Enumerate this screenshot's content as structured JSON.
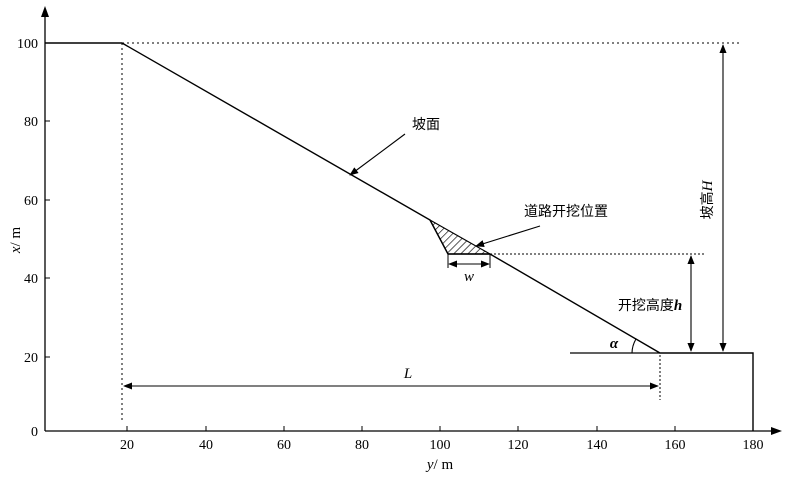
{
  "axes": {
    "x_axis_title": "y",
    "x_axis_unit": "/ m",
    "y_axis_title": "x",
    "y_axis_unit": "/ m",
    "x_ticks": [
      "20",
      "40",
      "60",
      "80",
      "100",
      "120",
      "140",
      "160",
      "180"
    ],
    "y_ticks": [
      "0",
      "20",
      "40",
      "60",
      "80",
      "100"
    ]
  },
  "labels": {
    "slope_face": "坡面",
    "excavation_location": "道路开挖位置",
    "excavation_width": "w",
    "excavation_height_text": "开挖高度",
    "excavation_height_symbol": "h",
    "slope_height_text": "坡高",
    "slope_height_symbol": "H",
    "horizontal_length": "L",
    "slope_angle": "α"
  },
  "geometry_data": {
    "slope_top": {
      "y": 18,
      "x": 100
    },
    "slope_toe": {
      "y": 157,
      "x": 20
    },
    "excavation_top": {
      "y": 96,
      "x": 55
    },
    "excavation_bottom_left": {
      "y": 102,
      "x": 45
    },
    "excavation_bottom_right": {
      "y": 113,
      "x": 45
    },
    "right_boundary_y": 180,
    "ground_level_x": 20
  }
}
